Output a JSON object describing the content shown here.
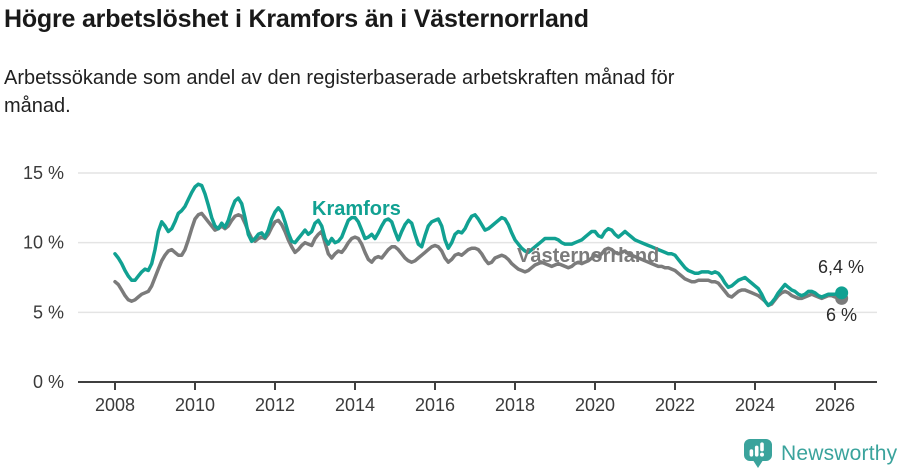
{
  "header": {
    "title": "Högre arbetslöshet i Kramfors än i Västernorrland",
    "subtitle": "Arbetssökande som andel av den registerbaserade arbetskraften månad för månad."
  },
  "chart_data": {
    "type": "line",
    "unit": "%",
    "x_monthly_from": "2008-01",
    "x_monthly_to": "2026-03",
    "ylim": [
      0,
      15
    ],
    "grid": "horizontal",
    "x_axis_ticks": [
      "2008",
      "2010",
      "2012",
      "2014",
      "2016",
      "2018",
      "2020",
      "2022",
      "2024",
      "2026"
    ],
    "y_axis_ticks": [
      {
        "value": 15,
        "label": "15 %"
      },
      {
        "value": 10,
        "label": "10 %"
      },
      {
        "value": 5,
        "label": "5 %"
      },
      {
        "value": 0,
        "label": "0 %"
      }
    ],
    "series": [
      {
        "name": "Kramfors",
        "color": "#11a192",
        "values": [
          9.2,
          8.9,
          8.5,
          8.0,
          7.6,
          7.3,
          7.3,
          7.6,
          7.9,
          8.1,
          8.0,
          8.5,
          9.5,
          10.8,
          11.5,
          11.2,
          10.8,
          11.0,
          11.5,
          12.1,
          12.3,
          12.6,
          13.1,
          13.6,
          14.0,
          14.2,
          14.1,
          13.5,
          12.7,
          11.8,
          11.2,
          11.0,
          11.4,
          11.1,
          11.6,
          12.4,
          13.0,
          13.2,
          12.8,
          11.8,
          10.6,
          10.1,
          10.3,
          10.6,
          10.7,
          10.4,
          10.9,
          11.7,
          12.2,
          12.5,
          12.2,
          11.5,
          10.7,
          10.1,
          10.0,
          10.3,
          10.6,
          10.9,
          10.6,
          10.8,
          11.4,
          11.6,
          11.2,
          10.3,
          9.9,
          10.3,
          10.0,
          10.1,
          10.4,
          11.0,
          11.6,
          11.8,
          11.8,
          11.5,
          10.9,
          10.3,
          10.4,
          10.6,
          10.3,
          10.7,
          11.2,
          11.6,
          11.7,
          11.5,
          10.8,
          10.2,
          10.8,
          11.3,
          11.6,
          11.4,
          10.6,
          9.9,
          9.7,
          10.5,
          11.2,
          11.5,
          11.6,
          11.7,
          11.2,
          10.2,
          9.6,
          10.0,
          10.6,
          10.8,
          10.7,
          11.0,
          11.5,
          11.9,
          12.0,
          11.7,
          11.3,
          10.9,
          11.0,
          11.2,
          11.4,
          11.6,
          11.8,
          11.7,
          11.3,
          10.7,
          10.2,
          9.9,
          9.6,
          9.4,
          9.3,
          9.5,
          9.7,
          9.9,
          10.1,
          10.3,
          10.3,
          10.3,
          10.3,
          10.2,
          10.0,
          9.9,
          9.9,
          9.9,
          10.0,
          10.1,
          10.2,
          10.4,
          10.6,
          10.8,
          10.8,
          10.5,
          10.4,
          10.8,
          11.0,
          10.9,
          10.6,
          10.4,
          10.6,
          10.8,
          10.6,
          10.4,
          10.2,
          10.1,
          10.0,
          9.9,
          9.8,
          9.7,
          9.6,
          9.5,
          9.4,
          9.3,
          9.2,
          9.2,
          9.1,
          8.8,
          8.5,
          8.2,
          8.0,
          7.9,
          7.8,
          7.8,
          7.9,
          7.9,
          7.9,
          7.8,
          7.9,
          7.8,
          7.5,
          7.1,
          6.8,
          6.9,
          7.1,
          7.3,
          7.4,
          7.5,
          7.3,
          7.1,
          6.9,
          6.7,
          6.3,
          5.8,
          5.5,
          5.7,
          6.0,
          6.4,
          6.7,
          7.0,
          6.8,
          6.6,
          6.5,
          6.3,
          6.2,
          6.3,
          6.5,
          6.5,
          6.4,
          6.2,
          6.1,
          6.2,
          6.3,
          6.3,
          6.3,
          6.35,
          6.4
        ]
      },
      {
        "name": "Västernorrland",
        "color": "#7b7b7b",
        "values": [
          7.2,
          7.0,
          6.6,
          6.2,
          5.9,
          5.8,
          5.9,
          6.1,
          6.3,
          6.4,
          6.5,
          6.9,
          7.5,
          8.1,
          8.7,
          9.1,
          9.4,
          9.5,
          9.3,
          9.1,
          9.1,
          9.5,
          10.2,
          11.0,
          11.7,
          12.0,
          12.1,
          11.8,
          11.5,
          11.2,
          10.9,
          11.0,
          11.2,
          11.0,
          11.2,
          11.6,
          11.9,
          12.0,
          11.9,
          11.4,
          10.8,
          10.3,
          10.1,
          10.3,
          10.4,
          10.3,
          10.6,
          11.1,
          11.5,
          11.6,
          11.3,
          10.8,
          10.2,
          9.7,
          9.3,
          9.5,
          9.8,
          10.0,
          9.9,
          9.8,
          10.3,
          10.6,
          10.8,
          10.0,
          9.2,
          8.9,
          9.2,
          9.4,
          9.3,
          9.6,
          10.0,
          10.3,
          10.4,
          10.3,
          9.9,
          9.3,
          8.8,
          8.6,
          8.9,
          9.0,
          8.9,
          9.2,
          9.5,
          9.7,
          9.7,
          9.5,
          9.2,
          8.9,
          8.7,
          8.6,
          8.7,
          8.9,
          9.1,
          9.3,
          9.5,
          9.7,
          9.8,
          9.7,
          9.4,
          8.9,
          8.6,
          8.8,
          9.1,
          9.2,
          9.1,
          9.3,
          9.5,
          9.6,
          9.6,
          9.5,
          9.2,
          8.8,
          8.5,
          8.6,
          8.9,
          9.0,
          9.1,
          9.0,
          8.8,
          8.5,
          8.3,
          8.1,
          8.0,
          7.9,
          8.0,
          8.2,
          8.4,
          8.5,
          8.6,
          8.5,
          8.4,
          8.3,
          8.4,
          8.5,
          8.4,
          8.3,
          8.2,
          8.3,
          8.5,
          8.6,
          8.5,
          8.6,
          8.7,
          8.9,
          9.1,
          9.0,
          9.2,
          9.5,
          9.6,
          9.5,
          9.3,
          9.2,
          9.3,
          9.4,
          9.2,
          9.1,
          9.0,
          8.9,
          8.8,
          8.7,
          8.6,
          8.5,
          8.4,
          8.3,
          8.3,
          8.2,
          8.2,
          8.1,
          8.0,
          7.8,
          7.6,
          7.4,
          7.3,
          7.2,
          7.2,
          7.3,
          7.3,
          7.3,
          7.3,
          7.2,
          7.2,
          7.1,
          6.8,
          6.5,
          6.2,
          6.1,
          6.3,
          6.5,
          6.6,
          6.6,
          6.5,
          6.4,
          6.3,
          6.2,
          6.0,
          5.8,
          5.5,
          5.6,
          5.9,
          6.2,
          6.4,
          6.5,
          6.4,
          6.2,
          6.1,
          6.0,
          6.0,
          6.1,
          6.2,
          6.3,
          6.2,
          6.1,
          6.0,
          6.1,
          6.2,
          6.2,
          6.1,
          6.1,
          6.0
        ]
      }
    ],
    "end_labels": [
      {
        "series": "Kramfors",
        "text": "6,4 %"
      },
      {
        "series": "Västernorrland",
        "text": "6 %"
      }
    ]
  },
  "footer": {
    "brand": "Newsworthy",
    "brand_color": "#3aa39c",
    "logo_icon": "newsworthy-bubble-barchart-icon"
  },
  "style": {
    "grid_color": "#e4e4e4",
    "axis_color": "#3f3f3f",
    "tick_label_color": "#3a3a3a"
  }
}
